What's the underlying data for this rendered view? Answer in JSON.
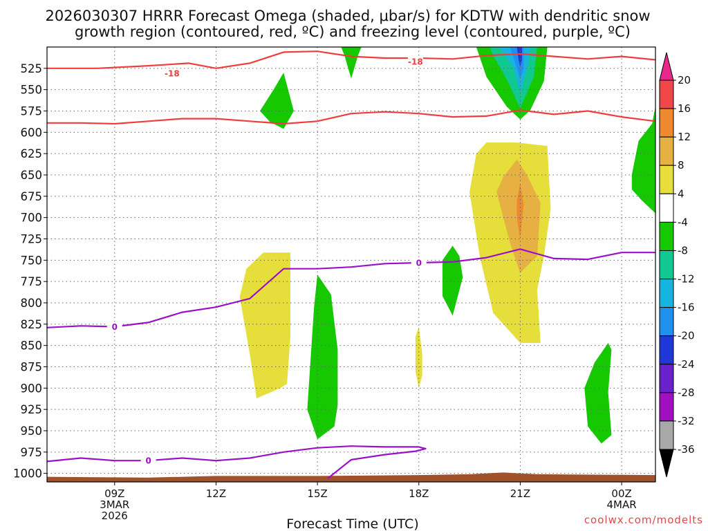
{
  "chart_data": {
    "type": "contour",
    "title_line1": "2026030307 HRRR Forecast Omega (shaded, μbar/s) for KDTW with dendritic snow",
    "title_line2": "growth region (contoured, red, ºC) and freezing level (contoured, purple, ºC)",
    "xlabel": "Forecast Time (UTC)",
    "credit": "coolwx.com/modelts",
    "x_range_hours": [
      7,
      25
    ],
    "y_range_hPa": [
      500,
      1010
    ],
    "y_ticks": [
      525,
      550,
      575,
      600,
      625,
      650,
      675,
      700,
      725,
      750,
      775,
      800,
      825,
      850,
      875,
      900,
      925,
      950,
      975,
      1000
    ],
    "x_ticks": [
      {
        "hour": 9,
        "lines": [
          "09Z",
          "3MAR",
          "2026"
        ]
      },
      {
        "hour": 12,
        "lines": [
          "12Z"
        ]
      },
      {
        "hour": 15,
        "lines": [
          "15Z"
        ]
      },
      {
        "hour": 18,
        "lines": [
          "18Z"
        ]
      },
      {
        "hour": 21,
        "lines": [
          "21Z"
        ]
      },
      {
        "hour": 24,
        "lines": [
          "00Z",
          "4MAR"
        ]
      }
    ],
    "colorbar": {
      "labels": [
        "20",
        "16",
        "12",
        "8",
        "4",
        "-4",
        "-8",
        "-12",
        "-16",
        "-20",
        "-24",
        "-28",
        "-32",
        "-36"
      ],
      "bins": [
        {
          "color": "#e8288c",
          "label": "> 20"
        },
        {
          "color": "#f04848",
          "label": "16 to 20"
        },
        {
          "color": "#ee8a30",
          "label": "12 to 16"
        },
        {
          "color": "#e6b042",
          "label": "8 to 12"
        },
        {
          "color": "#e6de3a",
          "label": "4 to 8"
        },
        {
          "color": "#ffffff",
          "label": "-4 to 4"
        },
        {
          "color": "#16c800",
          "label": "-8 to -4"
        },
        {
          "color": "#10c890",
          "label": "-12 to -8"
        },
        {
          "color": "#18b4e0",
          "label": "-16 to -12"
        },
        {
          "color": "#2090f0",
          "label": "-20 to -16"
        },
        {
          "color": "#2038d8",
          "label": "-24 to -20"
        },
        {
          "color": "#6a22cc",
          "label": "-28 to -24"
        },
        {
          "color": "#a010c0",
          "label": "-32 to -28"
        },
        {
          "color": "#a8a8a8",
          "label": "-36 to -32"
        },
        {
          "color": "#000000",
          "label": "< -36"
        }
      ]
    },
    "contours_red": [
      {
        "level_label": "-18",
        "label_positions": [
          [
            10.7,
            531
          ],
          [
            17.9,
            517
          ]
        ],
        "points": [
          [
            7.0,
            525
          ],
          [
            8.5,
            525
          ],
          [
            10.0,
            522
          ],
          [
            11.2,
            519
          ],
          [
            12.0,
            525
          ],
          [
            13.0,
            519
          ],
          [
            14.0,
            506
          ],
          [
            15.0,
            505
          ],
          [
            16.0,
            511
          ],
          [
            17.0,
            513
          ],
          [
            18.0,
            513
          ],
          [
            19.0,
            514
          ],
          [
            20.0,
            510
          ],
          [
            21.0,
            508
          ],
          [
            22.0,
            511
          ],
          [
            23.0,
            514
          ],
          [
            24.0,
            511
          ],
          [
            25.0,
            515
          ]
        ]
      },
      {
        "level_label": "",
        "label_positions": [],
        "points": [
          [
            7.0,
            589
          ],
          [
            8.0,
            589
          ],
          [
            9.0,
            590
          ],
          [
            10.0,
            587
          ],
          [
            11.0,
            584
          ],
          [
            12.0,
            584
          ],
          [
            13.0,
            587
          ],
          [
            14.0,
            590
          ],
          [
            15.0,
            587
          ],
          [
            16.0,
            578
          ],
          [
            17.0,
            576
          ],
          [
            18.0,
            578
          ],
          [
            19.0,
            582
          ],
          [
            20.0,
            581
          ],
          [
            21.0,
            574
          ],
          [
            22.0,
            579
          ],
          [
            23.0,
            575
          ],
          [
            24.0,
            582
          ],
          [
            25.0,
            587
          ]
        ]
      }
    ],
    "contours_purple": [
      {
        "level_label": "0",
        "label_positions": [
          [
            9.0,
            828
          ],
          [
            18.0,
            753
          ]
        ],
        "points": [
          [
            7.0,
            829
          ],
          [
            8.0,
            827
          ],
          [
            9.0,
            828
          ],
          [
            10.0,
            823
          ],
          [
            11.0,
            811
          ],
          [
            12.0,
            805
          ],
          [
            13.0,
            795
          ],
          [
            14.0,
            760
          ],
          [
            15.0,
            760
          ],
          [
            16.0,
            758
          ],
          [
            17.0,
            754
          ],
          [
            18.0,
            753
          ],
          [
            19.0,
            752
          ],
          [
            20.0,
            747
          ],
          [
            21.0,
            737
          ],
          [
            22.0,
            748
          ],
          [
            23.0,
            749
          ],
          [
            24.0,
            741
          ],
          [
            25.0,
            741
          ]
        ]
      },
      {
        "level_label": "0",
        "label_positions": [
          [
            10.0,
            985
          ]
        ],
        "points": [
          [
            7.0,
            986
          ],
          [
            8.0,
            982
          ],
          [
            9.0,
            985
          ],
          [
            10.0,
            985
          ],
          [
            11.0,
            982
          ],
          [
            12.0,
            985
          ],
          [
            13.0,
            982
          ],
          [
            14.0,
            975
          ],
          [
            15.0,
            970
          ],
          [
            16.0,
            968
          ],
          [
            17.0,
            969
          ],
          [
            18.0,
            969
          ],
          [
            18.2,
            971
          ],
          [
            17.9,
            974
          ],
          [
            17.0,
            978
          ],
          [
            16.0,
            984
          ],
          [
            15.3,
            1006
          ]
        ]
      }
    ],
    "omega_regions": [
      {
        "color": "#16c800",
        "points": [
          [
            13.3,
            575
          ],
          [
            13.7,
            550
          ],
          [
            14.0,
            530
          ],
          [
            14.3,
            575
          ],
          [
            14.0,
            596
          ],
          [
            13.6,
            588
          ]
        ]
      },
      {
        "color": "#16c800",
        "points": [
          [
            15.7,
            500
          ],
          [
            16.3,
            500
          ],
          [
            16.2,
            510
          ],
          [
            16.0,
            537
          ],
          [
            15.8,
            510
          ]
        ]
      },
      {
        "color": "#16c800",
        "points": [
          [
            19.7,
            500
          ],
          [
            21.8,
            500
          ],
          [
            21.7,
            540
          ],
          [
            21.3,
            574
          ],
          [
            21.0,
            585
          ],
          [
            20.6,
            570
          ],
          [
            20.0,
            535
          ]
        ]
      },
      {
        "color": "#10c890",
        "points": [
          [
            20.1,
            500
          ],
          [
            21.5,
            500
          ],
          [
            21.4,
            535
          ],
          [
            21.0,
            572
          ],
          [
            20.6,
            538
          ],
          [
            20.2,
            510
          ]
        ]
      },
      {
        "color": "#18b4e0",
        "points": [
          [
            20.4,
            500
          ],
          [
            21.3,
            500
          ],
          [
            21.2,
            525
          ],
          [
            21.0,
            553
          ],
          [
            20.8,
            525
          ]
        ]
      },
      {
        "color": "#2090f0",
        "points": [
          [
            20.7,
            500
          ],
          [
            21.1,
            500
          ],
          [
            21.1,
            525
          ],
          [
            21.0,
            538
          ],
          [
            20.9,
            525
          ]
        ]
      },
      {
        "color": "#2038d8",
        "points": [
          [
            20.9,
            500
          ],
          [
            21.05,
            500
          ],
          [
            21.05,
            515
          ],
          [
            21.0,
            523
          ],
          [
            20.95,
            515
          ]
        ]
      },
      {
        "color": "#16c800",
        "points": [
          [
            24.3,
            650
          ],
          [
            24.5,
            610
          ],
          [
            24.9,
            590
          ],
          [
            25.0,
            570
          ],
          [
            25.0,
            695
          ],
          [
            24.6,
            680
          ],
          [
            24.3,
            667
          ]
        ]
      },
      {
        "color": "#e6de3a",
        "points": [
          [
            13.4,
            741
          ],
          [
            14.2,
            741
          ],
          [
            14.2,
            840
          ],
          [
            14.1,
            895
          ],
          [
            13.9,
            900
          ],
          [
            13.2,
            912
          ],
          [
            13.0,
            860
          ],
          [
            12.7,
            793
          ],
          [
            12.9,
            760
          ]
        ]
      },
      {
        "color": "#e6de3a",
        "points": [
          [
            20.0,
            612
          ],
          [
            20.9,
            612
          ],
          [
            21.8,
            616
          ],
          [
            21.9,
            690
          ],
          [
            21.7,
            745
          ],
          [
            21.5,
            785
          ],
          [
            21.6,
            847
          ],
          [
            21.0,
            847
          ],
          [
            20.2,
            812
          ],
          [
            19.8,
            745
          ],
          [
            19.5,
            670
          ],
          [
            19.7,
            625
          ]
        ]
      },
      {
        "color": "#e6b042",
        "points": [
          [
            20.9,
            632
          ],
          [
            21.2,
            650
          ],
          [
            21.6,
            683
          ],
          [
            21.5,
            745
          ],
          [
            21.0,
            765
          ],
          [
            20.7,
            730
          ],
          [
            20.3,
            670
          ],
          [
            20.5,
            652
          ]
        ]
      },
      {
        "color": "#ee8a30",
        "points": [
          [
            21.0,
            660
          ],
          [
            21.1,
            685
          ],
          [
            21.0,
            725
          ],
          [
            20.9,
            700
          ],
          [
            20.9,
            680
          ]
        ]
      },
      {
        "color": "#16c800",
        "points": [
          [
            15.0,
            767
          ],
          [
            15.4,
            790
          ],
          [
            15.6,
            855
          ],
          [
            15.6,
            920
          ],
          [
            15.5,
            945
          ],
          [
            15.0,
            960
          ],
          [
            14.7,
            925
          ],
          [
            14.9,
            805
          ]
        ]
      },
      {
        "color": "#16c800",
        "points": [
          [
            19.0,
            733
          ],
          [
            19.2,
            745
          ],
          [
            19.3,
            770
          ],
          [
            19.1,
            800
          ],
          [
            19.0,
            815
          ],
          [
            18.7,
            792
          ],
          [
            18.7,
            750
          ]
        ]
      },
      {
        "color": "#e6de3a",
        "points": [
          [
            18.0,
            828
          ],
          [
            18.1,
            860
          ],
          [
            18.1,
            885
          ],
          [
            18.0,
            900
          ],
          [
            17.9,
            880
          ],
          [
            17.9,
            840
          ]
        ]
      },
      {
        "color": "#16c800",
        "points": [
          [
            23.2,
            870
          ],
          [
            23.6,
            847
          ],
          [
            23.7,
            855
          ],
          [
            23.6,
            905
          ],
          [
            23.7,
            955
          ],
          [
            23.4,
            965
          ],
          [
            23.0,
            945
          ],
          [
            22.9,
            900
          ]
        ]
      }
    ],
    "terrain": {
      "color": "#a0522d",
      "points": [
        [
          7.0,
          1004
        ],
        [
          10.0,
          1005
        ],
        [
          12.0,
          1003
        ],
        [
          15.0,
          1003
        ],
        [
          18.0,
          1002
        ],
        [
          19.5,
          1001
        ],
        [
          20.5,
          999
        ],
        [
          21.5,
          1001
        ],
        [
          25.0,
          1002
        ]
      ]
    }
  }
}
